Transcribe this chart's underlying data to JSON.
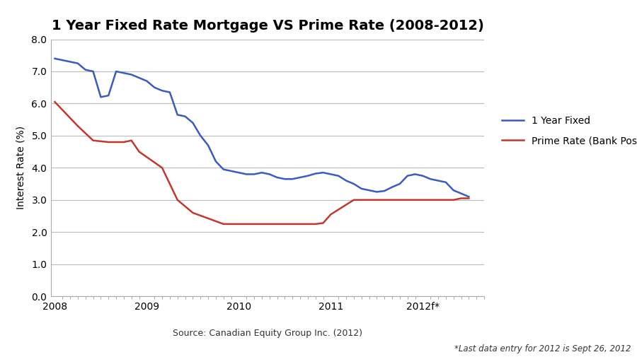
{
  "title": "1 Year Fixed Rate Mortgage VS Prime Rate (2008-2012)",
  "ylabel": "Interest Rate (%)",
  "source_text": "Source: Canadian Equity Group Inc. (2012)",
  "footnote_text": "*Last data entry for 2012 is Sept 26, 2012",
  "ylim": [
    0.0,
    8.0
  ],
  "yticks": [
    0.0,
    1.0,
    2.0,
    3.0,
    4.0,
    5.0,
    6.0,
    7.0,
    8.0
  ],
  "fixed_color": "#3a5bbf",
  "prime_color": "#c0392b",
  "fixed_label": "1 Year Fixed",
  "prime_label": "Prime Rate (Bank Posted)",
  "background_color": "#ffffff",
  "grid_color": "#bbbbbb",
  "fixed_x": [
    0,
    1,
    2,
    3,
    4,
    5,
    6,
    7,
    8,
    9,
    10,
    11,
    12,
    13,
    14,
    15,
    16,
    17,
    18,
    19,
    20,
    21,
    22,
    23,
    24,
    25,
    26,
    27,
    28,
    29,
    30,
    31,
    32,
    33,
    34,
    35,
    36,
    37,
    38,
    39,
    40,
    41,
    42,
    43,
    44,
    45,
    46,
    47,
    48,
    49,
    50,
    51,
    52,
    53,
    54
  ],
  "fixed_y": [
    7.4,
    7.35,
    7.3,
    7.25,
    7.05,
    7.0,
    6.2,
    6.25,
    7.0,
    6.95,
    6.9,
    6.8,
    6.7,
    6.5,
    6.4,
    6.35,
    5.65,
    5.6,
    5.4,
    5.0,
    4.7,
    4.2,
    3.95,
    3.9,
    3.85,
    3.8,
    3.8,
    3.85,
    3.8,
    3.7,
    3.65,
    3.65,
    3.7,
    3.75,
    3.82,
    3.85,
    3.8,
    3.75,
    3.6,
    3.5,
    3.35,
    3.3,
    3.25,
    3.28,
    3.4,
    3.5,
    3.75,
    3.8,
    3.75,
    3.65,
    3.6,
    3.55,
    3.3,
    3.2,
    3.1
  ],
  "prime_x": [
    0,
    2,
    3,
    5,
    7,
    9,
    10,
    11,
    14,
    15,
    16,
    18,
    22,
    23,
    24,
    27,
    32,
    33,
    34,
    35,
    36,
    37,
    38,
    39,
    40,
    41,
    42,
    43,
    44,
    45,
    46,
    47,
    48,
    49,
    50,
    51,
    52,
    53,
    54
  ],
  "prime_y": [
    6.05,
    5.55,
    5.3,
    4.85,
    4.8,
    4.8,
    4.85,
    4.5,
    4.0,
    3.5,
    3.0,
    2.6,
    2.25,
    2.25,
    2.25,
    2.25,
    2.25,
    2.25,
    2.25,
    2.28,
    2.55,
    2.7,
    2.85,
    3.0,
    3.0,
    3.0,
    3.0,
    3.0,
    3.0,
    3.0,
    3.0,
    3.0,
    3.0,
    3.0,
    3.0,
    3.0,
    3.0,
    3.05,
    3.05
  ],
  "xtick_positions": [
    0,
    12,
    24,
    36,
    48
  ],
  "xtick_labels": [
    "2008",
    "2009",
    "2010",
    "2011",
    "2012f*"
  ],
  "xlim": [
    -0.5,
    56
  ],
  "title_fontsize": 14,
  "axis_label_fontsize": 10,
  "tick_fontsize": 10,
  "legend_fontsize": 10,
  "source_fontsize": 9,
  "footnote_fontsize": 8.5
}
